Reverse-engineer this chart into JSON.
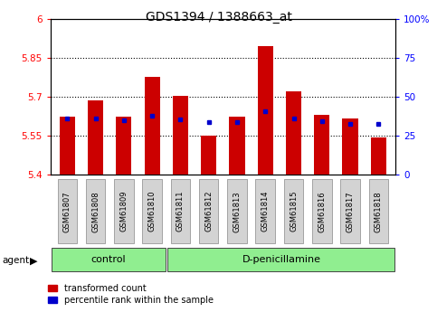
{
  "title": "GDS1394 / 1388663_at",
  "samples": [
    "GSM61807",
    "GSM61808",
    "GSM61809",
    "GSM61810",
    "GSM61811",
    "GSM61812",
    "GSM61813",
    "GSM61814",
    "GSM61815",
    "GSM61816",
    "GSM61817",
    "GSM61818"
  ],
  "red_values": [
    5.625,
    5.685,
    5.625,
    5.775,
    5.705,
    5.552,
    5.625,
    5.895,
    5.72,
    5.63,
    5.615,
    5.545
  ],
  "blue_values": [
    5.615,
    5.615,
    5.608,
    5.628,
    5.612,
    5.604,
    5.604,
    5.644,
    5.618,
    5.607,
    5.595,
    5.594
  ],
  "y_min": 5.4,
  "y_max": 6.0,
  "y_ticks_left": [
    5.4,
    5.55,
    5.7,
    5.85,
    6.0
  ],
  "y_ticks_left_labels": [
    "5.4",
    "5.55",
    "5.7",
    "5.85",
    "6"
  ],
  "y_ticks_right_labels": [
    "0",
    "25",
    "50",
    "75",
    "100%"
  ],
  "control_samples": 4,
  "groups": [
    "control",
    "D-penicillamine"
  ],
  "bar_color": "#CC0000",
  "dot_color": "#0000CC",
  "bar_width": 0.55,
  "grid_color": "#000000",
  "agent_label": "agent",
  "legend_labels": [
    "transformed count",
    "percentile rank within the sample"
  ]
}
